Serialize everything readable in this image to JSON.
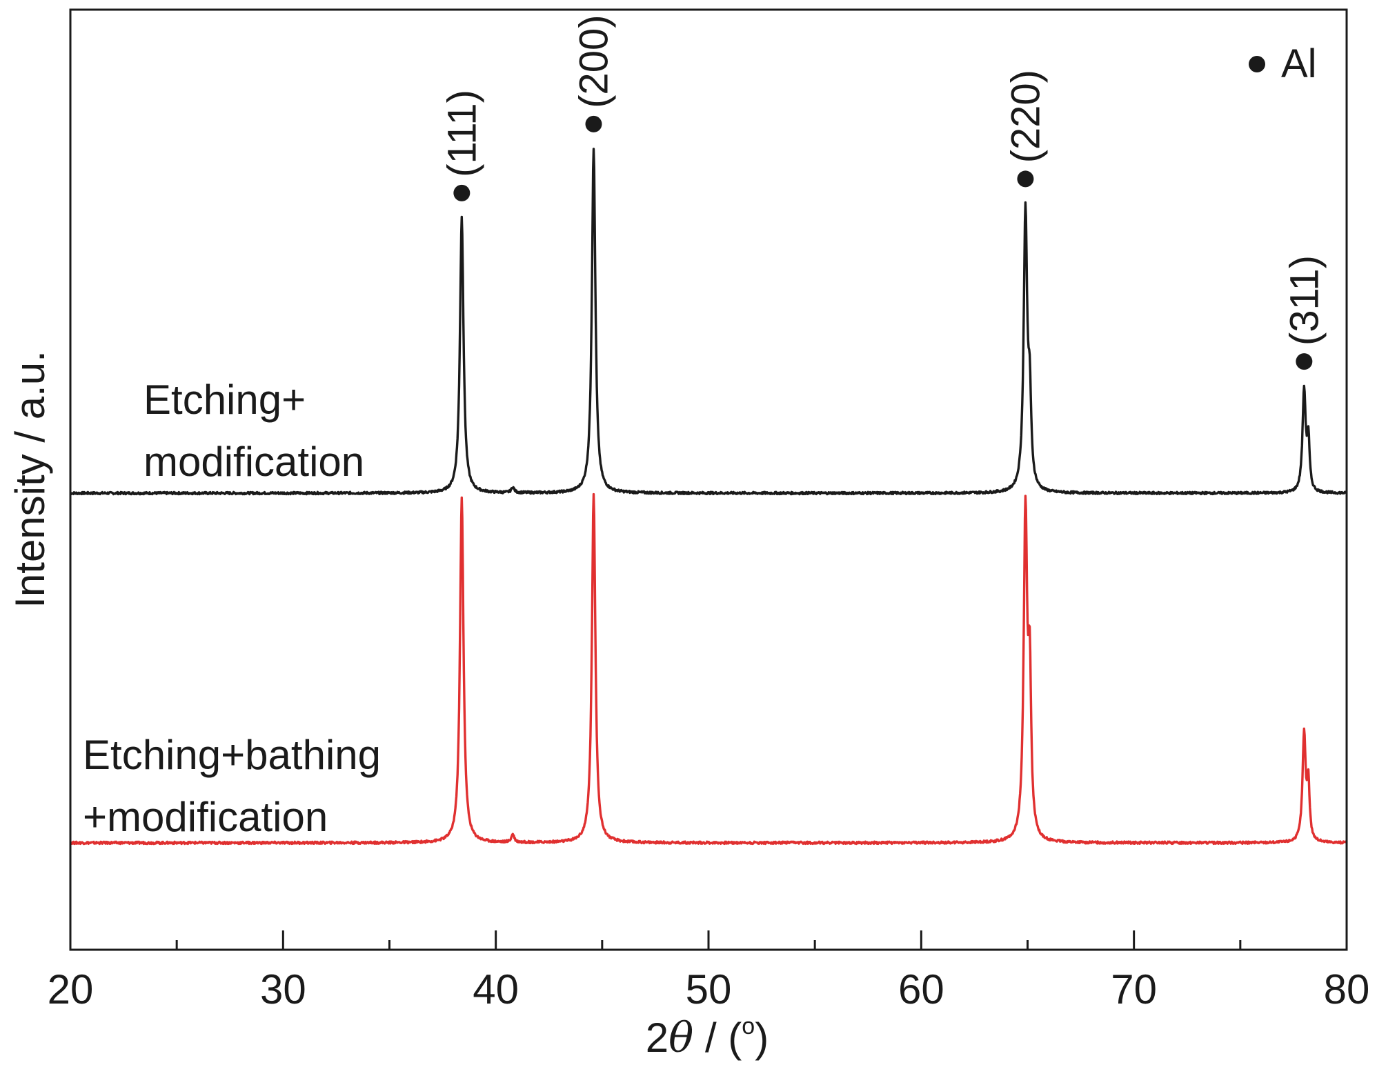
{
  "chart_data": {
    "type": "line",
    "title": "",
    "xlabel": "2θ / (°)",
    "xlabel_parts": {
      "prefix": "2",
      "symbol": "θ",
      "suffix": " / (",
      "degree": "o",
      "close": ")"
    },
    "ylabel": "Intensity / a.u.",
    "xlim": [
      20,
      80
    ],
    "x_ticks": [
      20,
      30,
      40,
      50,
      60,
      70,
      80
    ],
    "x_minor_ticks": [
      25,
      35,
      45,
      55,
      65,
      75
    ],
    "y_ticks_shown": false,
    "grid": false,
    "legend": {
      "marker": "●",
      "label": "Al",
      "placement": "top-right"
    },
    "series": [
      {
        "name": "Etching+ modification",
        "label_lines": [
          "Etching+",
          "modification"
        ],
        "color": "#1a1a1a",
        "baseline": 0.1,
        "peaks": [
          {
            "x": 38.4,
            "height": 1.0,
            "width": 0.1
          },
          {
            "x": 44.6,
            "height": 1.25,
            "width": 0.1
          },
          {
            "x": 64.9,
            "height": 1.01,
            "width": 0.1
          },
          {
            "x": 65.1,
            "height": 0.3,
            "width": 0.08
          },
          {
            "x": 78.0,
            "height": 0.37,
            "width": 0.09
          },
          {
            "x": 78.2,
            "height": 0.18,
            "width": 0.07
          },
          {
            "x": 40.8,
            "height": 0.02,
            "width": 0.08
          }
        ]
      },
      {
        "name": "Etching+bathing +modification",
        "label_lines": [
          "Etching+bathing",
          "+modification"
        ],
        "color": "#e03030",
        "baseline": 0.1,
        "peaks": [
          {
            "x": 38.4,
            "height": 1.25,
            "width": 0.1
          },
          {
            "x": 44.6,
            "height": 1.26,
            "width": 0.1
          },
          {
            "x": 64.9,
            "height": 1.18,
            "width": 0.1
          },
          {
            "x": 65.1,
            "height": 0.55,
            "width": 0.08
          },
          {
            "x": 78.0,
            "height": 0.39,
            "width": 0.09
          },
          {
            "x": 78.2,
            "height": 0.2,
            "width": 0.07
          },
          {
            "x": 40.8,
            "height": 0.03,
            "width": 0.08
          }
        ]
      }
    ],
    "annotations": [
      {
        "marker": "●",
        "label": "(111)",
        "x": 38.4
      },
      {
        "marker": "●",
        "label": "(200)",
        "x": 44.6
      },
      {
        "marker": "●",
        "label": "(220)",
        "x": 64.9
      },
      {
        "marker": "●",
        "label": "(311)",
        "x": 78.0
      }
    ]
  }
}
